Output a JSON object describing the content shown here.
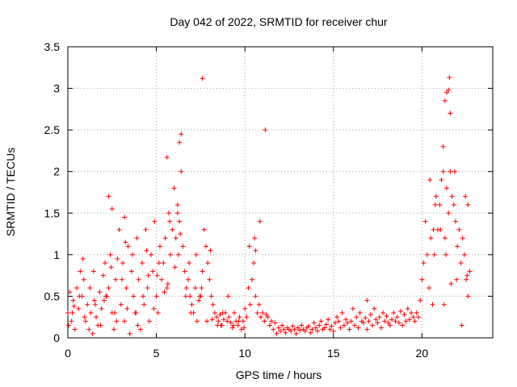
{
  "chart_data": {
    "type": "scatter",
    "title": "Day 042 of 2022, SRMTID for receiver chur",
    "xlabel": "GPS time / hours",
    "ylabel": "SRMTID / TECUs",
    "xlim": [
      0,
      24
    ],
    "ylim": [
      0,
      3.5
    ],
    "x_ticks": [
      0,
      5,
      10,
      15,
      20
    ],
    "x_tick_labels": [
      "0",
      "5",
      "10",
      "15",
      "20"
    ],
    "y_ticks": [
      0,
      0.5,
      1,
      1.5,
      2,
      2.5,
      3,
      3.5
    ],
    "y_tick_labels": [
      "0",
      "0.5",
      "1",
      "1.5",
      "2",
      "2.5",
      "3",
      "3.5"
    ],
    "grid": true,
    "marker": "+",
    "color": "#ff0000",
    "series": [
      {
        "name": "SRMTID",
        "x": [
          0.0,
          0.1,
          0.2,
          0.3,
          0.4,
          0.5,
          0.6,
          0.7,
          0.8,
          0.9,
          1.0,
          1.1,
          1.2,
          1.3,
          1.4,
          1.5,
          1.6,
          1.7,
          1.8,
          1.9,
          2.0,
          2.1,
          2.2,
          2.3,
          2.4,
          2.5,
          2.6,
          2.7,
          2.8,
          2.9,
          3.0,
          3.1,
          3.2,
          3.3,
          3.4,
          3.5,
          3.6,
          3.7,
          3.8,
          3.9,
          4.0,
          4.1,
          4.2,
          4.3,
          4.4,
          4.5,
          4.6,
          4.7,
          4.8,
          4.9,
          5.0,
          5.1,
          5.2,
          5.3,
          5.4,
          5.5,
          5.6,
          5.7,
          5.8,
          5.9,
          6.0,
          6.1,
          6.2,
          6.3,
          6.4,
          6.5,
          6.6,
          6.7,
          6.8,
          6.9,
          7.0,
          7.1,
          7.2,
          7.3,
          7.4,
          7.5,
          7.6,
          7.7,
          7.8,
          7.9,
          8.0,
          8.1,
          8.2,
          8.3,
          8.4,
          8.5,
          8.6,
          8.7,
          8.8,
          8.9,
          9.0,
          9.1,
          9.2,
          9.3,
          9.4,
          9.5,
          9.6,
          9.7,
          9.8,
          9.9,
          10.0,
          10.1,
          10.2,
          10.3,
          10.4,
          10.5,
          10.6,
          10.7,
          10.8,
          10.9,
          11.0,
          11.1,
          11.2,
          11.3,
          11.4,
          11.5,
          11.6,
          11.7,
          11.8,
          11.9,
          12.0,
          12.1,
          12.2,
          12.3,
          12.4,
          12.5,
          12.6,
          12.7,
          12.8,
          12.9,
          13.0,
          13.1,
          13.2,
          13.3,
          13.4,
          13.5,
          13.6,
          13.7,
          13.8,
          13.9,
          14.0,
          14.1,
          14.2,
          14.3,
          14.4,
          14.5,
          14.6,
          14.7,
          14.8,
          14.9,
          15.0,
          15.1,
          15.2,
          15.3,
          15.4,
          15.5,
          15.6,
          15.7,
          15.8,
          15.9,
          16.0,
          16.1,
          16.2,
          16.3,
          16.4,
          16.5,
          16.6,
          16.7,
          16.8,
          16.9,
          17.0,
          17.1,
          17.2,
          17.3,
          17.4,
          17.5,
          17.6,
          17.7,
          17.8,
          17.9,
          18.0,
          18.1,
          18.2,
          18.3,
          18.4,
          18.5,
          18.6,
          18.7,
          18.8,
          18.9,
          19.0,
          19.1,
          19.2,
          19.3,
          19.4,
          19.5,
          19.6,
          19.7,
          19.8,
          19.9,
          20.0,
          20.1,
          20.2,
          20.3,
          20.4,
          20.5,
          20.6,
          20.7,
          20.8,
          20.9,
          21.0,
          21.1,
          21.2,
          21.3,
          21.4,
          21.5,
          21.6,
          21.7,
          21.8,
          21.9,
          22.0,
          22.1,
          22.2,
          22.3,
          22.4,
          22.5,
          22.6,
          22.7,
          0.05,
          0.35,
          0.65,
          0.95,
          1.25,
          1.55,
          1.85,
          2.15,
          2.45,
          2.75,
          3.05,
          3.35,
          3.65,
          3.95,
          4.25,
          4.55,
          4.85,
          5.15,
          5.45,
          5.75,
          6.05,
          6.35,
          6.65,
          6.95,
          7.25,
          7.55,
          7.85,
          8.15,
          8.45,
          8.75,
          9.05,
          9.35,
          9.65,
          9.95,
          10.25,
          10.55,
          10.85,
          11.15,
          20.45,
          20.75,
          21.05,
          21.35,
          21.65,
          21.95,
          22.25,
          22.55,
          0.25,
          0.85,
          1.45,
          2.05,
          2.65,
          3.25,
          3.85,
          4.45,
          5.05,
          5.65,
          6.25,
          6.85,
          7.45,
          8.05,
          8.65,
          20.65,
          21.25,
          21.85,
          22.45,
          2.3,
          2.5,
          3.2,
          5.6,
          6.4,
          6.3,
          6.2,
          7.6,
          10.6,
          16.9,
          21.2,
          21.55,
          21.5,
          21.6,
          21.4,
          21.3,
          22.6
        ],
        "y": [
          0.3,
          0.55,
          0.2,
          0.45,
          0.1,
          0.6,
          0.35,
          0.8,
          0.5,
          0.7,
          0.2,
          0.4,
          0.1,
          0.3,
          0.05,
          0.45,
          0.25,
          0.15,
          0.55,
          0.35,
          0.75,
          0.9,
          0.5,
          0.6,
          1.0,
          0.3,
          0.1,
          0.7,
          0.95,
          1.3,
          0.4,
          0.9,
          0.2,
          0.6,
          1.1,
          0.05,
          0.8,
          0.5,
          0.3,
          1.2,
          0.7,
          0.1,
          0.9,
          0.4,
          1.3,
          0.6,
          0.2,
          1.0,
          0.8,
          1.4,
          0.5,
          0.3,
          1.1,
          0.7,
          0.9,
          1.2,
          0.6,
          1.5,
          1.0,
          1.3,
          1.8,
          1.2,
          1.6,
          1.4,
          2.0,
          1.1,
          0.8,
          0.6,
          0.7,
          0.5,
          0.4,
          0.3,
          0.6,
          0.2,
          0.45,
          0.5,
          0.8,
          1.3,
          1.1,
          0.9,
          0.7,
          0.5,
          0.4,
          0.3,
          0.25,
          0.2,
          0.28,
          0.15,
          0.22,
          0.3,
          0.2,
          0.25,
          0.18,
          0.12,
          0.3,
          0.2,
          0.15,
          0.25,
          0.1,
          0.2,
          0.35,
          0.25,
          0.6,
          0.4,
          0.7,
          0.9,
          0.5,
          0.3,
          0.4,
          0.25,
          0.3,
          0.2,
          0.28,
          0.25,
          0.15,
          0.2,
          0.1,
          0.18,
          0.05,
          0.12,
          0.08,
          0.15,
          0.1,
          0.06,
          0.12,
          0.1,
          0.08,
          0.14,
          0.1,
          0.05,
          0.12,
          0.09,
          0.15,
          0.1,
          0.08,
          0.12,
          0.14,
          0.06,
          0.1,
          0.18,
          0.12,
          0.08,
          0.15,
          0.2,
          0.1,
          0.12,
          0.16,
          0.22,
          0.1,
          0.14,
          0.08,
          0.18,
          0.25,
          0.2,
          0.12,
          0.3,
          0.15,
          0.22,
          0.18,
          0.1,
          0.2,
          0.35,
          0.15,
          0.25,
          0.12,
          0.3,
          0.2,
          0.18,
          0.24,
          0.1,
          0.2,
          0.28,
          0.15,
          0.35,
          0.22,
          0.18,
          0.25,
          0.12,
          0.3,
          0.2,
          0.26,
          0.18,
          0.15,
          0.22,
          0.3,
          0.2,
          0.25,
          0.18,
          0.32,
          0.15,
          0.28,
          0.2,
          0.35,
          0.22,
          0.3,
          0.25,
          0.2,
          0.3,
          0.25,
          0.45,
          0.7,
          0.9,
          1.4,
          1.0,
          0.6,
          1.2,
          0.4,
          1.0,
          1.7,
          1.3,
          1.6,
          1.9,
          2.3,
          1.2,
          1.8,
          1.5,
          2.0,
          1.7,
          1.6,
          1.4,
          1.1,
          1.3,
          0.9,
          1.2,
          1.0,
          0.7,
          0.5,
          0.8,
          0.15,
          0.38,
          0.5,
          0.25,
          0.6,
          0.4,
          0.15,
          0.5,
          0.85,
          0.2,
          0.7,
          0.35,
          1.0,
          0.15,
          0.5,
          0.75,
          0.35,
          0.9,
          0.55,
          1.4,
          0.85,
          1.25,
          0.5,
          0.3,
          1.0,
          0.6,
          0.2,
          0.22,
          0.15,
          0.3,
          0.5,
          0.15,
          0.2,
          0.12,
          1.1,
          1.2,
          1.4,
          2.5,
          1.9,
          1.6,
          1.3,
          1.0,
          0.65,
          0.7,
          0.15,
          0.75,
          0.3,
          0.95,
          0.8,
          0.45,
          0.3,
          1.15,
          0.3,
          1.05,
          0.75,
          0.65,
          1.0,
          0.9,
          0.5,
          1.05,
          0.15,
          1.3,
          0.4,
          2.0,
          1.7,
          1.7,
          1.55,
          1.45,
          2.17,
          2.45,
          2.35,
          1.5,
          3.12,
          1.05,
          0.45,
          2.0,
          3.13,
          2.98,
          2.7,
          2.95,
          2.85,
          1.6
        ]
      }
    ]
  }
}
